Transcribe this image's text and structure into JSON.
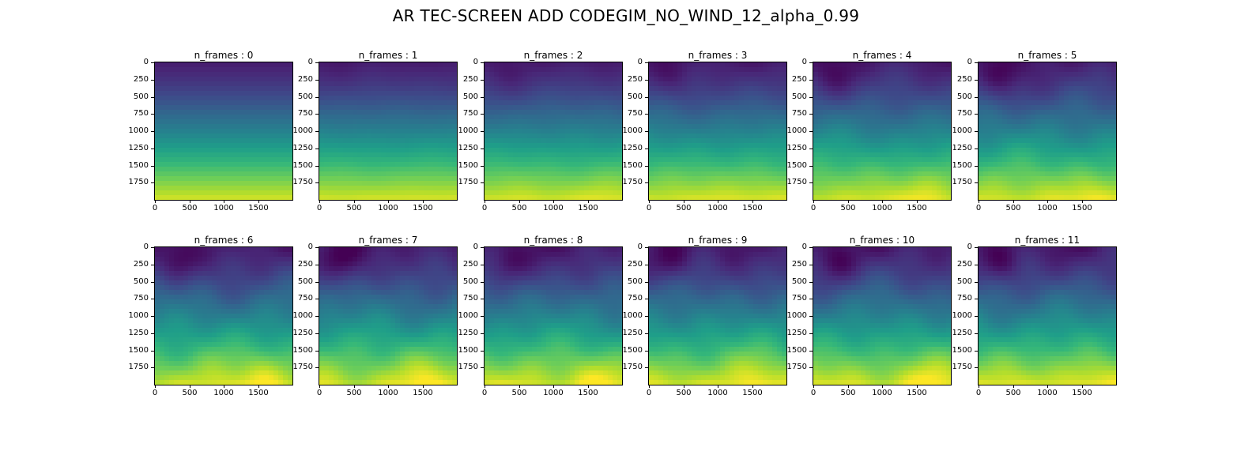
{
  "figure": {
    "title": "AR TEC-SCREEN ADD CODEGIM_NO_WIND_12_alpha_0.99"
  },
  "colors": {
    "viridis": [
      "#440154",
      "#482878",
      "#3e4989",
      "#31688e",
      "#26828e",
      "#1f9e89",
      "#35b779",
      "#6ece58",
      "#b5de2b",
      "#fde725"
    ]
  },
  "chart_data": {
    "type": "heatmap",
    "layout": {
      "rows": 2,
      "cols": 6
    },
    "colormap": "viridis",
    "x_ticks": [
      0,
      500,
      1000,
      1500
    ],
    "y_ticks": [
      0,
      250,
      500,
      750,
      1000,
      1250,
      1500,
      1750
    ],
    "x_tick_labels": [
      "0",
      "500",
      "1000",
      "1500"
    ],
    "y_tick_labels": [
      "0",
      "250",
      "500",
      "750",
      "1000",
      "1250",
      "1500",
      "1750"
    ],
    "xlim": [
      0,
      2000
    ],
    "ylim": [
      2000,
      0
    ],
    "panels": [
      {
        "title": "n_frames : 0",
        "frame": 0
      },
      {
        "title": "n_frames : 1",
        "frame": 1
      },
      {
        "title": "n_frames : 2",
        "frame": 2
      },
      {
        "title": "n_frames : 3",
        "frame": 3
      },
      {
        "title": "n_frames : 4",
        "frame": 4
      },
      {
        "title": "n_frames : 5",
        "frame": 5
      },
      {
        "title": "n_frames : 6",
        "frame": 6
      },
      {
        "title": "n_frames : 7",
        "frame": 7
      },
      {
        "title": "n_frames : 8",
        "frame": 8
      },
      {
        "title": "n_frames : 9",
        "frame": 9
      },
      {
        "title": "n_frames : 10",
        "frame": 10
      },
      {
        "title": "n_frames : 11",
        "frame": 11
      }
    ]
  }
}
